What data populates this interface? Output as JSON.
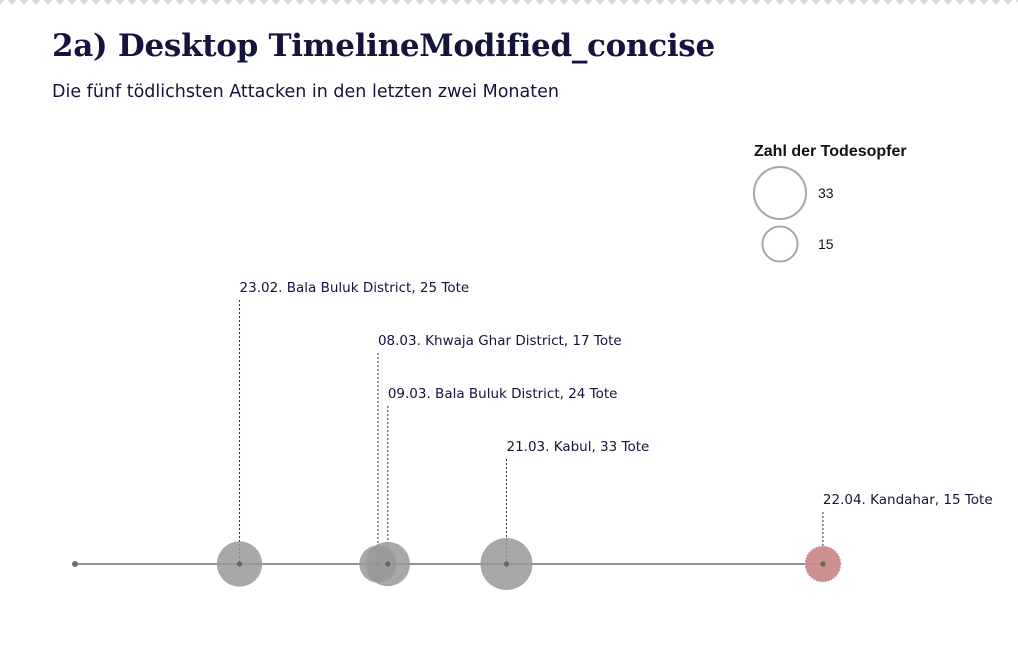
{
  "header": {
    "title": "2a) Desktop TimelineModified_concise",
    "subtitle": "Die fünf tödlichsten Attacken in den letzten zwei Monaten"
  },
  "legend": {
    "title": "Zahl der Todesopfer",
    "items": [
      {
        "value": 33,
        "label": "33"
      },
      {
        "value": 15,
        "label": "15"
      }
    ]
  },
  "colors": {
    "bubble": "#999999",
    "highlight": "#c98a8a",
    "axis": "#7a6a6a",
    "legend_stroke": "#a8a8a8",
    "text": "#14143c"
  },
  "chart_data": {
    "type": "scatter",
    "title": "2a) Desktop TimelineModified_concise",
    "subtitle": "Die fünf tödlichsten Attacken in den letzten zwei Monaten",
    "x_axis": "date",
    "xlim": [
      "2016-02-01",
      "2016-04-30"
    ],
    "size_legend_title": "Zahl der Todesopfer",
    "points": [
      {
        "date": "2016-02-23",
        "deaths": 25,
        "label": "23.02. Bala Buluk District, 25 Tote",
        "highlight": false
      },
      {
        "date": "2016-03-08",
        "deaths": 17,
        "label": "08.03. Khwaja Ghar District, 17 Tote",
        "highlight": false
      },
      {
        "date": "2016-03-09",
        "deaths": 24,
        "label": "09.03. Bala Buluk District, 24 Tote",
        "highlight": false
      },
      {
        "date": "2016-03-21",
        "deaths": 33,
        "label": "21.03. Kabul, 33 Tote",
        "highlight": false
      },
      {
        "date": "2016-04-22",
        "deaths": 15,
        "label": "22.04. Kandahar, 15 Tote",
        "highlight": true
      }
    ]
  }
}
